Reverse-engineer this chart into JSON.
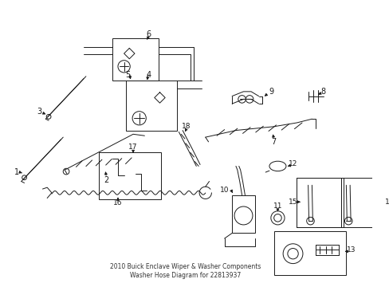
{
  "title": "2010 Buick Enclave Wiper & Washer Components\nWasher Hose Diagram for 22813937",
  "bg_color": "#ffffff",
  "fig_width": 4.89,
  "fig_height": 3.6,
  "dpi": 100,
  "lc": "#1a1a1a",
  "lw": 0.7,
  "fs": 7.0
}
